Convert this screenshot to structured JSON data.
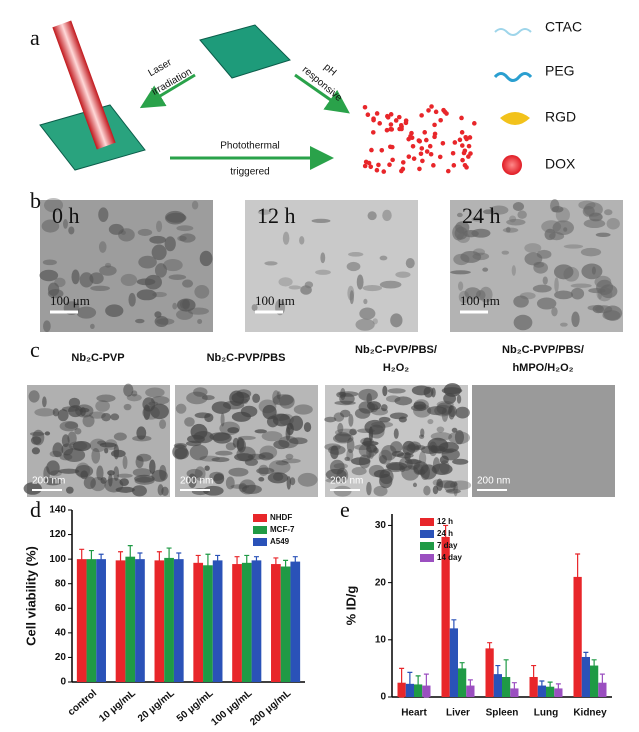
{
  "panel_labels": [
    "a",
    "b",
    "c",
    "d",
    "e"
  ],
  "schematic": {
    "laser_label": [
      "Laser",
      "irradiation"
    ],
    "ph_label": [
      "pH",
      "responsive"
    ],
    "photothermal_label": [
      "Photothermal",
      "triggered"
    ],
    "legend": [
      "CTAC",
      "PEG",
      "RGD",
      "DOX"
    ]
  },
  "tem_time": [
    {
      "label": "0 h",
      "scale": "100 μm"
    },
    {
      "label": "12 h",
      "scale": "100 μm"
    },
    {
      "label": "24 h",
      "scale": "100 μm"
    }
  ],
  "tem_nb2c": [
    {
      "title": [
        "Nb₂C-PVP"
      ],
      "scale": "200 nm"
    },
    {
      "title": [
        "Nb₂C-PVP/PBS"
      ],
      "scale": "200 nm"
    },
    {
      "title": [
        "Nb₂C-PVP/PBS/",
        "H₂O₂"
      ],
      "scale": "200 nm"
    },
    {
      "title": [
        "Nb₂C-PVP/PBS/",
        "hMPO/H₂O₂"
      ],
      "scale": "200 nm"
    }
  ],
  "chart_data": [
    {
      "type": "bar",
      "ylabel": "Cell viability (%)",
      "categories": [
        "control",
        "10 μg/mL",
        "20 μg/mL",
        "50 μg/mL",
        "100 μg/mL",
        "200 μg/mL"
      ],
      "series": [
        {
          "name": "NHDF",
          "color": "#e8262a",
          "values": [
            100,
            99,
            99,
            97,
            96,
            96
          ],
          "errors": [
            8,
            7,
            7,
            6,
            6,
            5
          ]
        },
        {
          "name": "MCF-7",
          "color": "#1f9a45",
          "values": [
            100,
            102,
            101,
            95,
            97,
            94
          ],
          "errors": [
            7,
            9,
            8,
            9,
            6,
            5
          ]
        },
        {
          "name": "A549",
          "color": "#2a52b8",
          "values": [
            100,
            100,
            100,
            99,
            99,
            98
          ],
          "errors": [
            4,
            5,
            5,
            4,
            3,
            4
          ]
        }
      ],
      "ylim": [
        0,
        140
      ],
      "yticks": [
        0,
        20,
        40,
        60,
        80,
        100,
        120,
        140
      ],
      "legend": "upper right"
    },
    {
      "type": "bar",
      "ylabel": "% ID/g",
      "categories": [
        "Heart",
        "Liver",
        "Spleen",
        "Lung",
        "Kidney"
      ],
      "series": [
        {
          "name": "12 h",
          "color": "#e8262a",
          "values": [
            2.5,
            28,
            8.5,
            3.5,
            21
          ],
          "errors": [
            2.5,
            2,
            1,
            2,
            4
          ]
        },
        {
          "name": "24 h",
          "color": "#2a52b8",
          "values": [
            2.3,
            12,
            4,
            2,
            7
          ],
          "errors": [
            2,
            1.5,
            1.5,
            0.8,
            0.8
          ]
        },
        {
          "name": "7 day",
          "color": "#1f9a45",
          "values": [
            2.2,
            5,
            3.5,
            1.8,
            5.5
          ],
          "errors": [
            1.5,
            1,
            3,
            0.8,
            1
          ]
        },
        {
          "name": "14 day",
          "color": "#9b4fc0",
          "values": [
            2,
            2,
            1.5,
            1.5,
            2.5
          ],
          "errors": [
            2,
            1,
            1,
            0.8,
            1.5
          ]
        }
      ],
      "ylim": [
        0,
        32
      ],
      "yticks": [
        0,
        10,
        20,
        30
      ],
      "legend": "upper left"
    }
  ]
}
